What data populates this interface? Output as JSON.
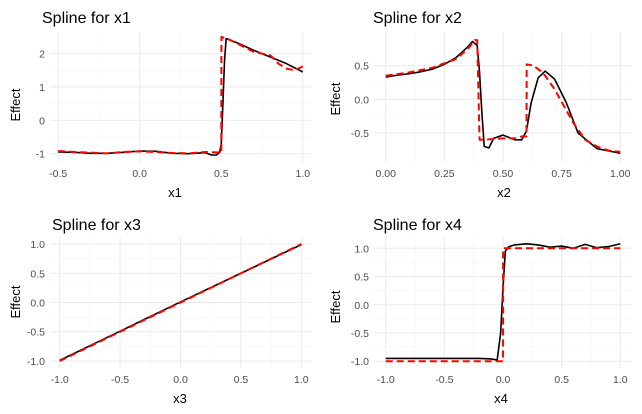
{
  "colors": {
    "true_curve": "#ff0000",
    "fitted_curve": "#000000",
    "grid": "#ebebeb",
    "panel": "#ffffff"
  },
  "chart_data": [
    {
      "type": "line",
      "title": "Spline for x1",
      "xlabel": "x1",
      "ylabel": "Effect",
      "xlim": [
        -0.55,
        1.05
      ],
      "ylim": [
        -1.25,
        2.65
      ],
      "xticks": [
        -0.5,
        0.0,
        0.5,
        1.0
      ],
      "xtick_labels": [
        "-0.5",
        "0.0",
        "0.5",
        "1.0"
      ],
      "yticks": [
        -1,
        0,
        1,
        2
      ],
      "ytick_labels": [
        "-1",
        "0",
        "1",
        "2"
      ],
      "grid": true,
      "series": [
        {
          "style": "solid",
          "color": "#000000",
          "x": [
            -0.5,
            -0.4,
            -0.3,
            -0.2,
            -0.1,
            0.0,
            0.1,
            0.2,
            0.3,
            0.4,
            0.44,
            0.47,
            0.49,
            0.5,
            0.51,
            0.52,
            0.53,
            0.6,
            0.7,
            0.8,
            0.9,
            1.0
          ],
          "y": [
            -0.95,
            -0.96,
            -0.99,
            -0.99,
            -0.96,
            -0.92,
            -0.93,
            -0.99,
            -1.0,
            -0.97,
            -1.04,
            -1.04,
            -0.96,
            -0.7,
            0.5,
            1.8,
            2.45,
            2.32,
            2.1,
            1.9,
            1.7,
            1.45
          ]
        },
        {
          "style": "dashed",
          "color": "#ff0000",
          "x": [
            -0.5,
            -0.4,
            -0.3,
            -0.2,
            -0.1,
            0.0,
            0.1,
            0.2,
            0.3,
            0.4,
            0.47,
            0.5,
            0.501,
            0.55,
            0.6,
            0.7,
            0.8,
            0.85,
            0.9,
            0.95,
            1.0
          ],
          "y": [
            -0.92,
            -0.95,
            -0.97,
            -0.99,
            -0.95,
            -0.93,
            -0.95,
            -0.98,
            -0.99,
            -0.95,
            -0.96,
            -0.97,
            2.5,
            2.42,
            2.3,
            2.05,
            1.95,
            1.7,
            1.55,
            1.5,
            1.62
          ]
        }
      ]
    },
    {
      "type": "line",
      "title": "Spline for x2",
      "xlabel": "x2",
      "ylabel": "Effect",
      "xlim": [
        -0.05,
        1.05
      ],
      "ylim": [
        -0.93,
        1.0
      ],
      "xticks": [
        0.0,
        0.25,
        0.5,
        0.75,
        1.0
      ],
      "xtick_labels": [
        "0.00",
        "0.25",
        "0.50",
        "0.75",
        "1.00"
      ],
      "yticks": [
        -0.5,
        0.0,
        0.5
      ],
      "ytick_labels": [
        "-0.5",
        "0.0",
        "0.5"
      ],
      "grid": true,
      "series": [
        {
          "style": "solid",
          "color": "#000000",
          "x": [
            0.0,
            0.05,
            0.1,
            0.15,
            0.2,
            0.25,
            0.3,
            0.35,
            0.37,
            0.39,
            0.4,
            0.41,
            0.42,
            0.44,
            0.46,
            0.5,
            0.55,
            0.58,
            0.6,
            0.62,
            0.65,
            0.68,
            0.72,
            0.77,
            0.82,
            0.9,
            1.0
          ],
          "y": [
            0.33,
            0.36,
            0.38,
            0.41,
            0.45,
            0.52,
            0.62,
            0.78,
            0.86,
            0.8,
            0.4,
            -0.2,
            -0.7,
            -0.72,
            -0.58,
            -0.53,
            -0.6,
            -0.6,
            -0.47,
            -0.05,
            0.32,
            0.42,
            0.3,
            -0.05,
            -0.5,
            -0.73,
            -0.8
          ]
        },
        {
          "style": "dashed",
          "color": "#ff0000",
          "x": [
            0.0,
            0.1,
            0.2,
            0.3,
            0.35,
            0.38,
            0.39,
            0.4,
            0.41,
            0.5,
            0.55,
            0.58,
            0.6,
            0.601,
            0.63,
            0.66,
            0.68,
            0.72,
            0.76,
            0.8,
            0.85,
            0.9,
            0.95,
            1.0
          ],
          "y": [
            0.35,
            0.4,
            0.47,
            0.6,
            0.75,
            0.88,
            0.88,
            -0.6,
            -0.6,
            -0.58,
            -0.58,
            -0.55,
            -0.55,
            0.52,
            0.5,
            0.42,
            0.35,
            0.15,
            -0.1,
            -0.35,
            -0.6,
            -0.7,
            -0.76,
            -0.78
          ]
        }
      ]
    },
    {
      "type": "line",
      "title": "Spline for x3",
      "xlabel": "x3",
      "ylabel": "Effect",
      "xlim": [
        -1.08,
        1.08
      ],
      "ylim": [
        -1.12,
        1.12
      ],
      "xticks": [
        -1.0,
        -0.5,
        0.0,
        0.5,
        1.0
      ],
      "xtick_labels": [
        "-1.0",
        "-0.5",
        "0.0",
        "0.5",
        "1.0"
      ],
      "yticks": [
        -1.0,
        -0.5,
        0.0,
        0.5,
        1.0
      ],
      "ytick_labels": [
        "-1.0",
        "-0.5",
        "0.0",
        "0.5",
        "1.0"
      ],
      "grid": true,
      "series": [
        {
          "style": "solid",
          "color": "#000000",
          "x": [
            -1.0,
            -0.5,
            0.0,
            0.5,
            1.0
          ],
          "y": [
            -0.99,
            -0.49,
            0.01,
            0.5,
            0.99
          ]
        },
        {
          "style": "dashed",
          "color": "#ff0000",
          "x": [
            -1.0,
            -0.5,
            0.0,
            0.5,
            1.0
          ],
          "y": [
            -1.0,
            -0.5,
            0.0,
            0.5,
            1.0
          ]
        }
      ]
    },
    {
      "type": "line",
      "title": "Spline for x4",
      "xlabel": "x4",
      "ylabel": "Effect",
      "xlim": [
        -1.1,
        1.1
      ],
      "ylim": [
        -1.12,
        1.2
      ],
      "xticks": [
        -1.0,
        -0.5,
        0.0,
        0.5,
        1.0
      ],
      "xtick_labels": [
        "-1.0",
        "-0.5",
        "0.0",
        "0.5",
        "1.0"
      ],
      "yticks": [
        -1.0,
        -0.5,
        0.0,
        0.5,
        1.0
      ],
      "ytick_labels": [
        "-1.0",
        "-0.5",
        "0.0",
        "0.5",
        "1.0"
      ],
      "grid": true,
      "series": [
        {
          "style": "solid",
          "color": "#000000",
          "x": [
            -1.0,
            -0.8,
            -0.5,
            -0.2,
            -0.1,
            -0.05,
            -0.02,
            0.0,
            0.02,
            0.05,
            0.1,
            0.2,
            0.3,
            0.4,
            0.5,
            0.6,
            0.7,
            0.8,
            0.9,
            1.0
          ],
          "y": [
            -0.95,
            -0.95,
            -0.95,
            -0.95,
            -0.96,
            -0.98,
            -0.5,
            0.3,
            0.95,
            1.03,
            1.06,
            1.08,
            1.06,
            1.02,
            1.04,
            1.0,
            1.07,
            1.01,
            1.03,
            1.08
          ]
        },
        {
          "style": "dashed",
          "color": "#ff0000",
          "x": [
            -1.0,
            -0.5,
            0.0,
            0.001,
            0.5,
            1.0
          ],
          "y": [
            -1.0,
            -1.0,
            -1.0,
            1.0,
            1.0,
            1.0
          ]
        }
      ]
    }
  ]
}
